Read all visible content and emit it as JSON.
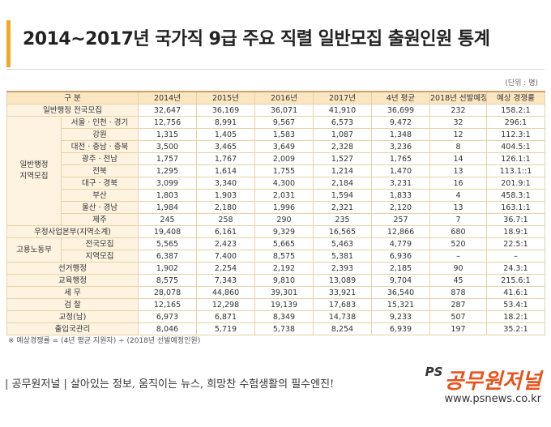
{
  "title": "2014~2017년 국가직 9급 주요 직렬 일반모집 출원인원 통계",
  "unit_note": "(단위 : 명)",
  "header": [
    "구 분",
    "2014년",
    "2015년",
    "2016년",
    "2017년",
    "4년 평균",
    "2018년 선발예정",
    "예상 경쟁률"
  ],
  "rows": {
    "r0": {
      "label": "일반행정 전국모집",
      "v": [
        "32,647",
        "36,169",
        "36,071",
        "41,910",
        "36,699",
        "232",
        "158.2:1"
      ]
    },
    "group_regional": "일반행정\n지역모집",
    "r1": {
      "label": "서울 · 인천 · 경기",
      "v": [
        "12,756",
        "8,991",
        "9,567",
        "6,573",
        "9,472",
        "32",
        "296:1"
      ]
    },
    "r2": {
      "label": "강원",
      "v": [
        "1,315",
        "1,405",
        "1,583",
        "1,087",
        "1,348",
        "12",
        "112.3:1"
      ]
    },
    "r3": {
      "label": "대전 · 충남 · 충북",
      "v": [
        "3,500",
        "3,465",
        "3,649",
        "2,328",
        "3,236",
        "8",
        "404.5:1"
      ]
    },
    "r4": {
      "label": "광주 · 전남",
      "v": [
        "1,757",
        "1,767",
        "2,009",
        "1,527",
        "1,765",
        "14",
        "126.1:1"
      ]
    },
    "r5": {
      "label": "전북",
      "v": [
        "1,295",
        "1,614",
        "1,755",
        "1,214",
        "1,470",
        "13",
        "113.1::1"
      ]
    },
    "r6": {
      "label": "대구 · 경북",
      "v": [
        "3,099",
        "3,340",
        "4,300",
        "2,184",
        "3,231",
        "16",
        "201.9:1"
      ]
    },
    "r7": {
      "label": "부산",
      "v": [
        "1,803",
        "1,903",
        "2,031",
        "1,594",
        "1,833",
        "4",
        "458.3:1"
      ]
    },
    "r8": {
      "label": "울산 · 경남",
      "v": [
        "1,984",
        "2,180",
        "1,996",
        "2,321",
        "2,120",
        "13",
        "163.1:1"
      ]
    },
    "r9": {
      "label": "제주",
      "v": [
        "245",
        "258",
        "290",
        "235",
        "257",
        "7",
        "36.7:1"
      ]
    },
    "r10": {
      "label": "우정사업본부(지역소계)",
      "v": [
        "19,408",
        "6,161",
        "9,329",
        "16,565",
        "12,866",
        "680",
        "18.9:1"
      ]
    },
    "group_labor": "고용노동부",
    "r11": {
      "label": "전국모집",
      "v": [
        "5,565",
        "2,423",
        "5,665",
        "5,463",
        "4,779",
        "520",
        "22.5:1"
      ]
    },
    "r12": {
      "label": "지역모집",
      "v": [
        "6,387",
        "7,400",
        "8,575",
        "5,381",
        "6,936",
        "–",
        "–"
      ]
    },
    "r13": {
      "label": "선거행정",
      "v": [
        "1,902",
        "2,254",
        "2,192",
        "2,393",
        "2,185",
        "90",
        "24.3:1"
      ]
    },
    "r14": {
      "label": "교육행정",
      "v": [
        "8,575",
        "7,343",
        "9,810",
        "13,089",
        "9,704",
        "45",
        "215.6:1"
      ]
    },
    "r15": {
      "label": "세 무",
      "v": [
        "28,078",
        "44,860",
        "39,301",
        "33,921",
        "36,540",
        "878",
        "41.6:1"
      ]
    },
    "r16": {
      "label": "검 찰",
      "v": [
        "12,165",
        "12,298",
        "19,139",
        "17,683",
        "15,321",
        "287",
        "53.4:1"
      ]
    },
    "r17": {
      "label": "교정(남)",
      "v": [
        "6,973",
        "6,871",
        "8,349",
        "14,738",
        "9,233",
        "507",
        "18.2:1"
      ]
    },
    "r18": {
      "label": "출입국관리",
      "v": [
        "8,046",
        "5,719",
        "5,738",
        "8,254",
        "6,939",
        "197",
        "35.2:1"
      ]
    }
  },
  "footnote": "※ 예상경쟁률 = (4년 평균 지원자) ÷ (2018년 선발예정인원)",
  "footer_slogan": "| 공무원저널 | 살아있는 정보, 움직이는 뉴스, 희망찬 수험생활의 필수엔진!",
  "brand_ps": "PS",
  "brand_name": "공무원저널",
  "brand_url": "www.psnews.co.kr",
  "accent_color": "#f5a623",
  "header_bg": "#fbe6c2"
}
